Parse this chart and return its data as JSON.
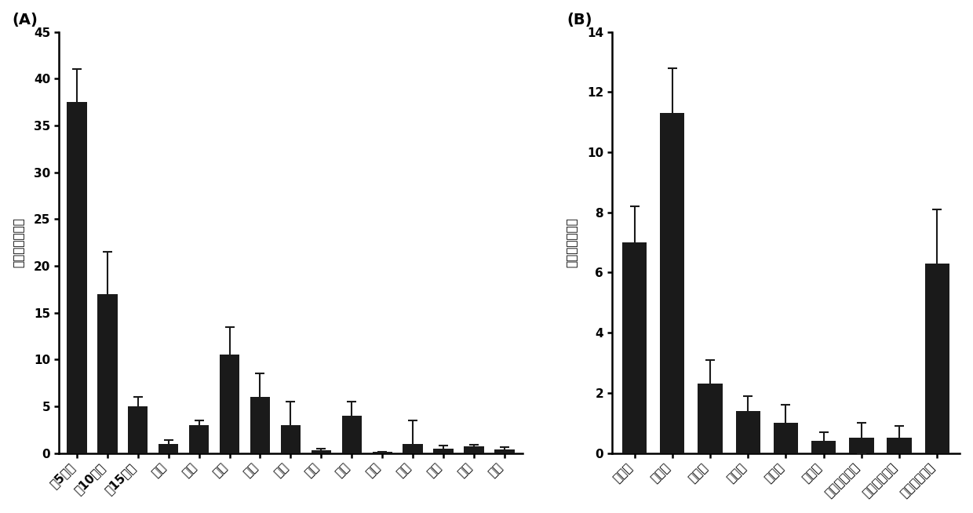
{
  "panel_A": {
    "categories": [
      "第5叶位",
      "第10叶位",
      "第15叶位",
      "茎杆",
      "茎节",
      "横根",
      "须根",
      "花蕴",
      "花詼",
      "花瓣",
      "花药",
      "花丝",
      "花头",
      "花柱",
      "子房"
    ],
    "values": [
      37.5,
      17.0,
      5.0,
      1.0,
      3.0,
      10.5,
      6.0,
      3.0,
      0.3,
      4.0,
      0.1,
      1.0,
      0.5,
      0.7,
      0.4
    ],
    "errors": [
      3.5,
      4.5,
      1.0,
      0.4,
      0.5,
      3.0,
      2.5,
      2.5,
      0.15,
      1.5,
      0.05,
      2.5,
      0.3,
      0.2,
      0.2
    ],
    "ylabel": "基因相对表达量",
    "ylim": [
      0,
      45
    ],
    "yticks": [
      0,
      5,
      10,
      15,
      20,
      25,
      30,
      35,
      40,
      45
    ],
    "label": "(A)"
  },
  "panel_B": {
    "categories": [
      "幼苗期",
      "团棵期",
      "旺长期",
      "现蕴期",
      "盛花期",
      "打顶期",
      "下部叶成熟期",
      "中部叶成熟期",
      "上部叶成熟期"
    ],
    "values": [
      7.0,
      11.3,
      2.3,
      1.4,
      1.0,
      0.4,
      0.5,
      0.5,
      6.3
    ],
    "errors": [
      1.2,
      1.5,
      0.8,
      0.5,
      0.6,
      0.3,
      0.5,
      0.4,
      1.8
    ],
    "ylabel": "基因相对表达量",
    "ylim": [
      0,
      14
    ],
    "yticks": [
      0,
      2,
      4,
      6,
      8,
      10,
      12,
      14
    ],
    "label": "(B)"
  },
  "bar_color": "#1a1a1a",
  "error_color": "#1a1a1a",
  "background_color": "#ffffff",
  "font_size": 10,
  "tick_font_size": 11,
  "label_font_size": 14
}
